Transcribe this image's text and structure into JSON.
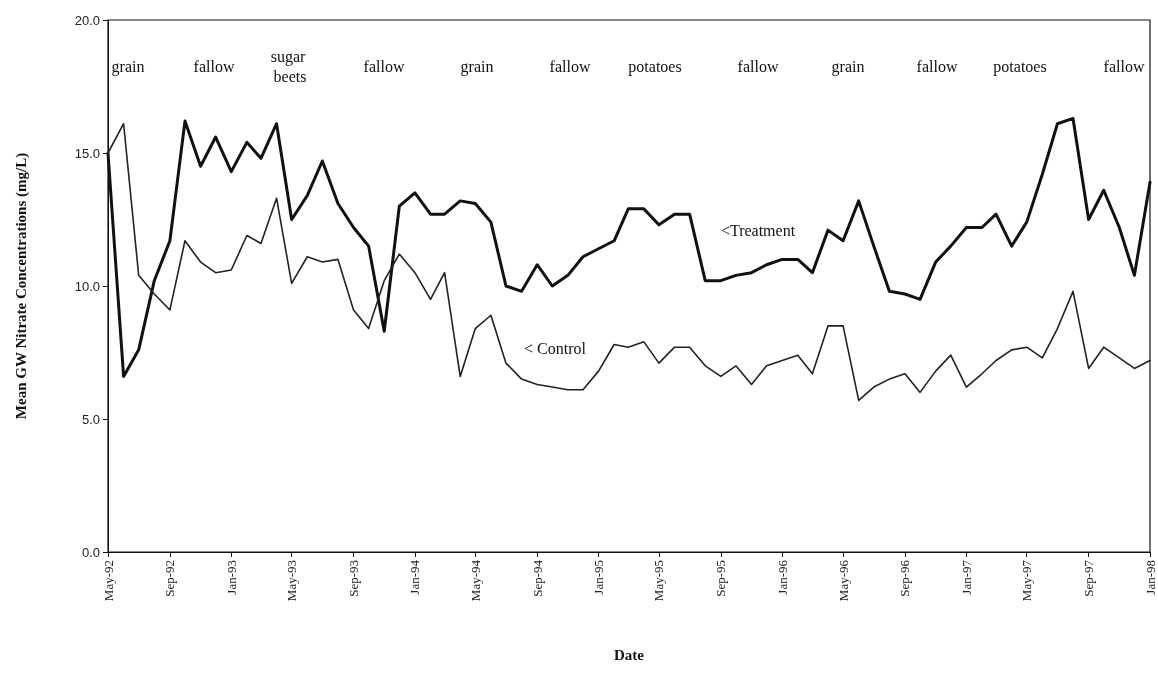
{
  "chart_data": {
    "type": "line",
    "xlabel": "Date",
    "ylabel": "Mean GW Nitrate Concentrations (mg/L)",
    "x": [
      "1992-05",
      "1992-06",
      "1992-07",
      "1992-08",
      "1992-09",
      "1992-10",
      "1992-11",
      "1992-12",
      "1993-01",
      "1993-02",
      "1993-03",
      "1993-04",
      "1993-05",
      "1993-06",
      "1993-07",
      "1993-08",
      "1993-09",
      "1993-10",
      "1993-11",
      "1993-12",
      "1994-01",
      "1994-02",
      "1994-03",
      "1994-04",
      "1994-05",
      "1994-06",
      "1994-07",
      "1994-08",
      "1994-09",
      "1994-10",
      "1994-11",
      "1994-12",
      "1995-01",
      "1995-02",
      "1995-03",
      "1995-04",
      "1995-05",
      "1995-06",
      "1995-07",
      "1995-08",
      "1995-09",
      "1995-10",
      "1995-11",
      "1995-12",
      "1996-01",
      "1996-02",
      "1996-03",
      "1996-04",
      "1996-05",
      "1996-06",
      "1996-07",
      "1996-08",
      "1996-09",
      "1996-10",
      "1996-11",
      "1996-12",
      "1997-01",
      "1997-02",
      "1997-03",
      "1997-04",
      "1997-05",
      "1997-06",
      "1997-07",
      "1997-08",
      "1997-09",
      "1997-10",
      "1997-11",
      "1997-12",
      "1998-01"
    ],
    "series": [
      {
        "color": "#111111",
        "values": [
          15.0,
          6.6,
          7.6,
          10.2,
          11.7,
          16.2,
          14.5,
          15.6,
          14.3,
          15.4,
          14.8,
          16.1,
          12.5,
          13.4,
          14.7,
          13.1,
          12.2,
          11.5,
          8.3,
          13.0,
          13.5,
          12.7,
          12.7,
          13.2,
          13.1,
          12.4,
          10.0,
          9.8,
          10.8,
          10.0,
          10.4,
          11.1,
          11.4,
          11.7,
          12.9,
          12.9,
          12.3,
          12.7,
          12.7,
          10.2,
          10.2,
          10.4,
          10.5,
          10.8,
          11.0,
          11.0,
          10.5,
          12.1,
          11.7,
          13.2,
          11.5,
          9.8,
          9.7,
          9.5,
          10.9,
          11.5,
          12.2,
          12.2,
          12.7,
          11.5,
          12.4,
          14.2,
          16.1,
          16.3,
          12.5,
          13.6,
          12.2,
          10.4,
          13.9
        ]
      },
      {
        "color": "#222222",
        "values": [
          15.0,
          16.1,
          10.4,
          9.7,
          9.1,
          11.7,
          10.9,
          10.5,
          10.6,
          11.9,
          11.6,
          13.3,
          10.1,
          11.1,
          10.9,
          11.0,
          9.1,
          8.4,
          10.2,
          11.2,
          10.5,
          9.5,
          10.5,
          6.6,
          8.4,
          8.9,
          7.1,
          6.5,
          6.3,
          6.2,
          6.1,
          6.1,
          6.8,
          7.8,
          7.7,
          7.9,
          7.1,
          7.7,
          7.7,
          7.0,
          6.6,
          7.0,
          6.3,
          7.0,
          7.2,
          7.4,
          6.7,
          8.5,
          8.5,
          5.7,
          6.2,
          6.5,
          6.7,
          6.0,
          6.8,
          7.4,
          6.2,
          6.7,
          7.2,
          7.6,
          7.7,
          7.3,
          8.4,
          9.8,
          6.9,
          7.7,
          7.3,
          6.9,
          7.2
        ]
      }
    ],
    "xlim": [
      "1992-05",
      "1998-01"
    ],
    "xticks": [
      {
        "value": "1992-05",
        "label": "May-92"
      },
      {
        "value": "1992-09",
        "label": "Sep-92"
      },
      {
        "value": "1993-01",
        "label": "Jan-93"
      },
      {
        "value": "1993-05",
        "label": "May-93"
      },
      {
        "value": "1993-09",
        "label": "Sep-93"
      },
      {
        "value": "1994-01",
        "label": "Jan-94"
      },
      {
        "value": "1994-05",
        "label": "May-94"
      },
      {
        "value": "1994-09",
        "label": "Sep-94"
      },
      {
        "value": "1995-01",
        "label": "Jan-95"
      },
      {
        "value": "1995-05",
        "label": "May-95"
      },
      {
        "value": "1995-09",
        "label": "Sep-95"
      },
      {
        "value": "1996-01",
        "label": "Jan-96"
      },
      {
        "value": "1996-05",
        "label": "May-96"
      },
      {
        "value": "1996-09",
        "label": "Sep-96"
      },
      {
        "value": "1997-01",
        "label": "Jan-97"
      },
      {
        "value": "1997-05",
        "label": "May-97"
      },
      {
        "value": "1997-09",
        "label": "Sep-97"
      },
      {
        "value": "1998-01",
        "label": "Jan-98"
      }
    ],
    "ylim": [
      0,
      20
    ],
    "yticks": [
      {
        "value": 0,
        "label": "0.0"
      },
      {
        "value": 5,
        "label": "5.0"
      },
      {
        "value": 10,
        "label": "10.0"
      },
      {
        "value": 15,
        "label": "15.0"
      },
      {
        "value": 20,
        "label": "20.0"
      }
    ],
    "grid": false,
    "marker": "none",
    "line_style": "solid",
    "annotations": [
      "grain",
      "fallow",
      "sugar beets",
      "fallow",
      "grain",
      "fallow",
      "potatoes",
      "fallow",
      "grain",
      "fallow",
      "potatoes",
      "fallow",
      "<Treatment",
      "< Control"
    ]
  }
}
